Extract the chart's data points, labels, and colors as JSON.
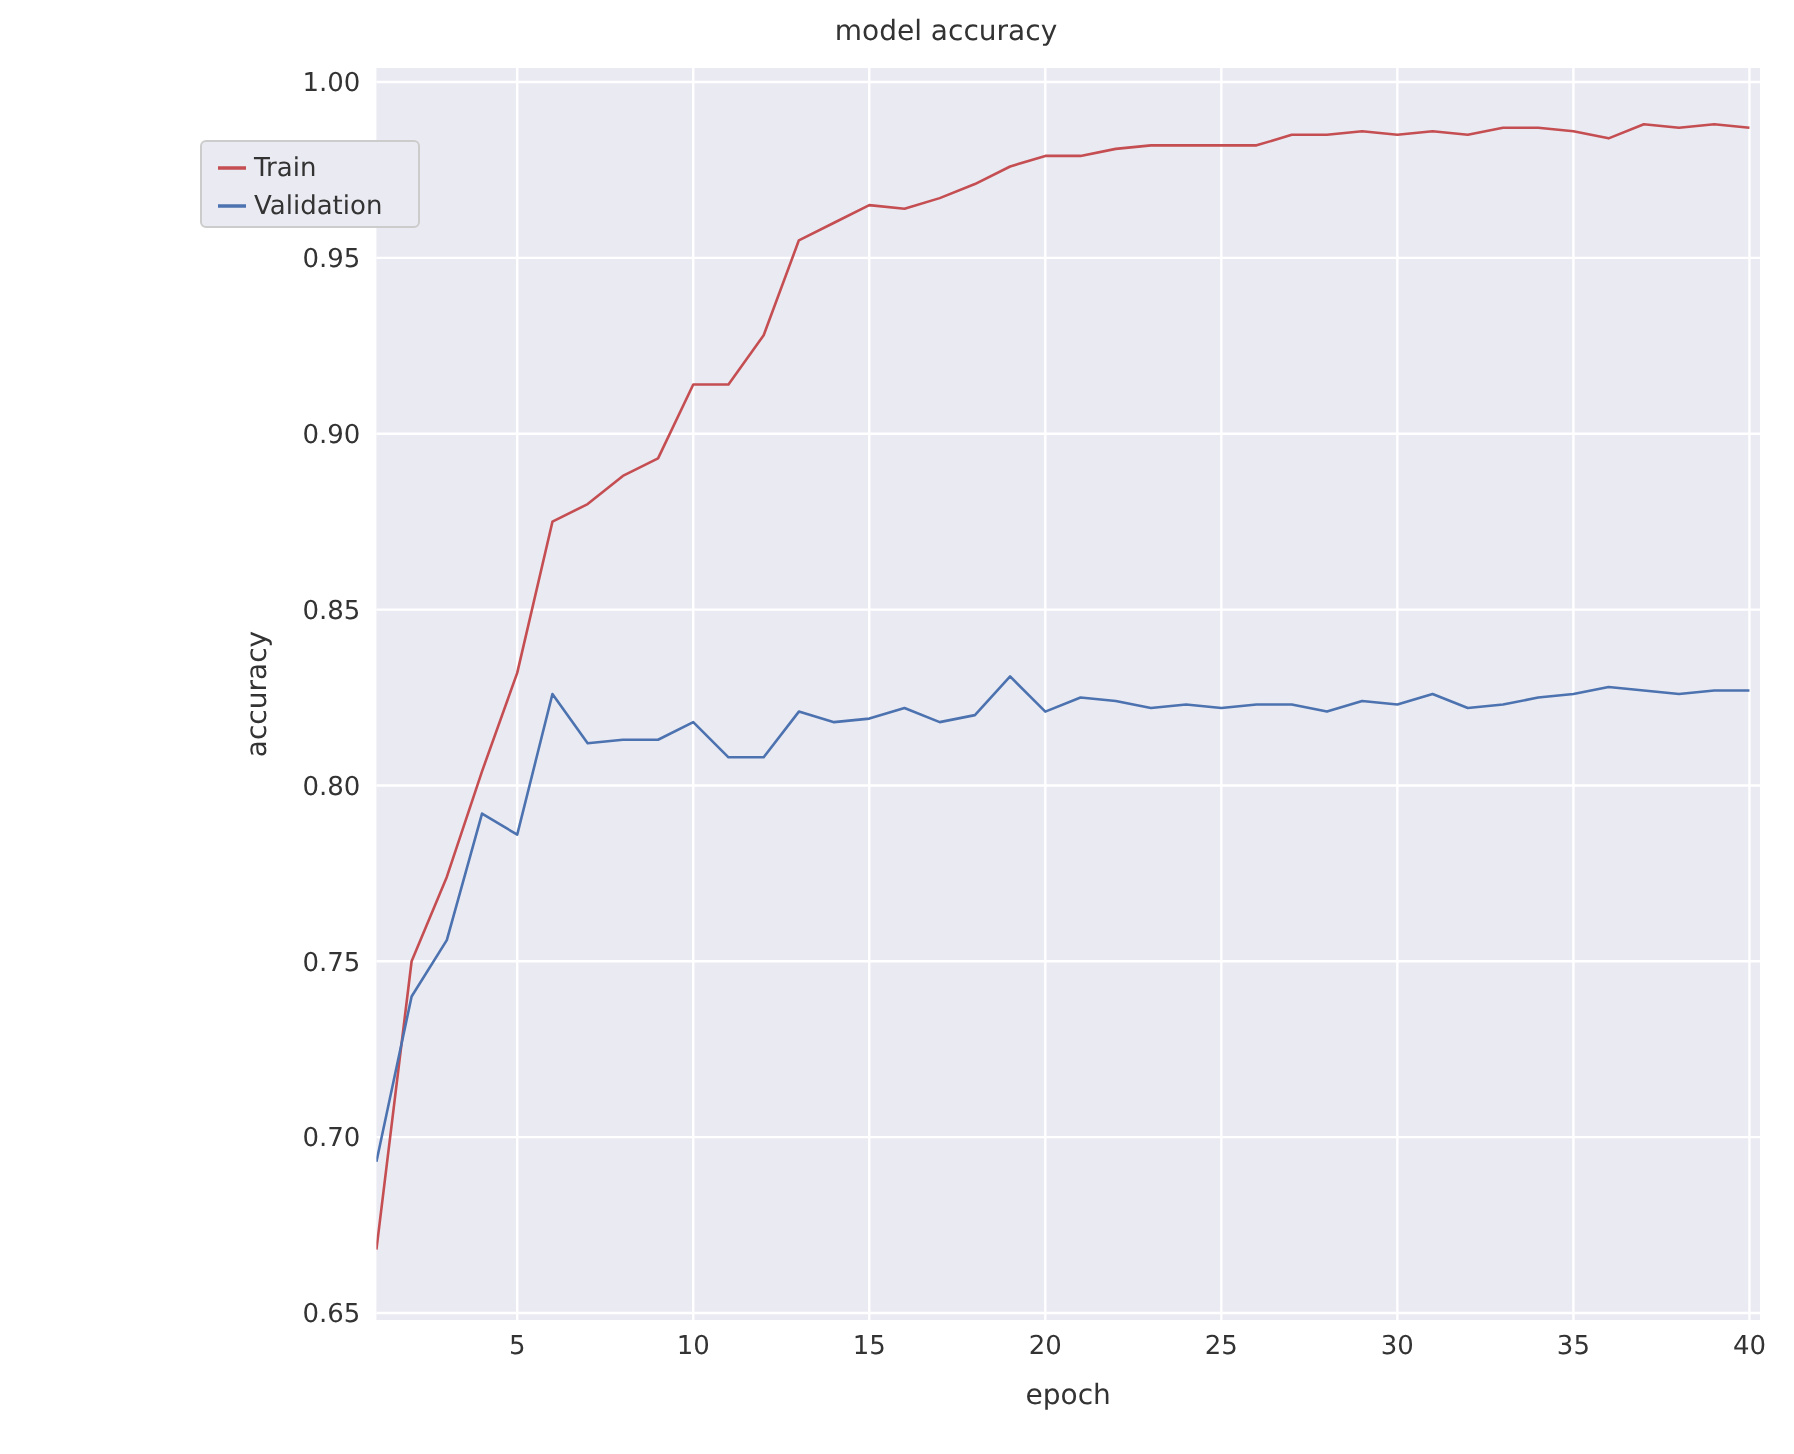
{
  "chart_data": {
    "type": "line",
    "title": "model accuracy",
    "xlabel": "epoch",
    "ylabel": "accuracy",
    "x": [
      1,
      2,
      3,
      4,
      5,
      6,
      7,
      8,
      9,
      10,
      11,
      12,
      13,
      14,
      15,
      16,
      17,
      18,
      19,
      20,
      21,
      22,
      23,
      24,
      25,
      26,
      27,
      28,
      29,
      30,
      31,
      32,
      33,
      34,
      35,
      36,
      37,
      38,
      39,
      40
    ],
    "series": [
      {
        "name": "Train",
        "color": "#c44e52",
        "values": [
          0.668,
          0.75,
          0.774,
          0.804,
          0.832,
          0.875,
          0.88,
          0.888,
          0.893,
          0.914,
          0.914,
          0.928,
          0.955,
          0.96,
          0.965,
          0.964,
          0.967,
          0.971,
          0.976,
          0.979,
          0.979,
          0.981,
          0.982,
          0.982,
          0.982,
          0.982,
          0.985,
          0.985,
          0.986,
          0.985,
          0.986,
          0.985,
          0.987,
          0.987,
          0.986,
          0.984,
          0.988,
          0.987,
          0.988,
          0.987
        ]
      },
      {
        "name": "Validation",
        "color": "#4c72b0",
        "values": [
          0.693,
          0.74,
          0.756,
          0.792,
          0.786,
          0.826,
          0.812,
          0.813,
          0.813,
          0.818,
          0.808,
          0.808,
          0.821,
          0.818,
          0.819,
          0.822,
          0.818,
          0.82,
          0.831,
          0.821,
          0.825,
          0.824,
          0.822,
          0.823,
          0.822,
          0.823,
          0.823,
          0.821,
          0.824,
          0.823,
          0.826,
          0.822,
          0.823,
          0.825,
          0.826,
          0.828,
          0.827,
          0.826,
          0.827,
          0.827
        ]
      }
    ],
    "xlim": [
      1,
      40.3
    ],
    "xticks": [
      5,
      10,
      15,
      20,
      25,
      30,
      35,
      40
    ],
    "ylim": [
      0.648,
      1.004
    ],
    "yticks": [
      {
        "value": 0.65,
        "label": "0.65"
      },
      {
        "value": 0.7,
        "label": "0.70"
      },
      {
        "value": 0.75,
        "label": "0.75"
      },
      {
        "value": 0.8,
        "label": "0.80"
      },
      {
        "value": 0.85,
        "label": "0.85"
      },
      {
        "value": 0.9,
        "label": "0.90"
      },
      {
        "value": 0.95,
        "label": "0.95"
      },
      {
        "value": 1.0,
        "label": "1.00"
      }
    ],
    "grid": true,
    "legend": "top left"
  }
}
